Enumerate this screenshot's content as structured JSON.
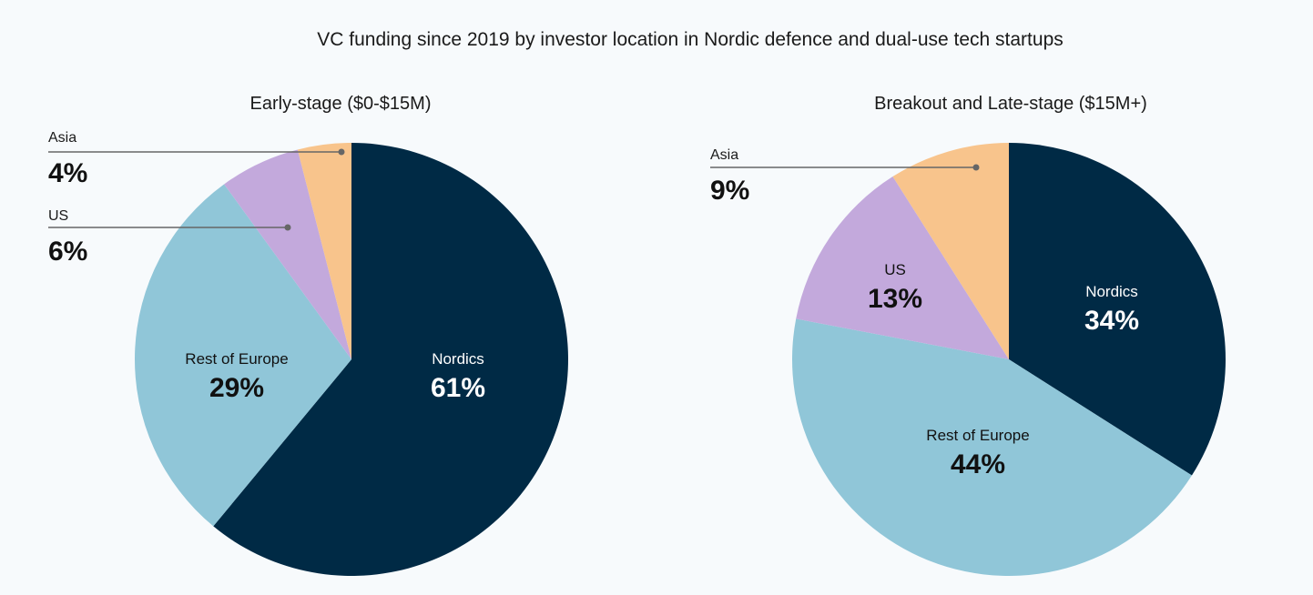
{
  "chart_data": {
    "title": "VC funding since 2019 by investor location in Nordic defence and dual-use tech startups",
    "charts": [
      {
        "type": "pie",
        "subtitle": "Early-stage ($0-$15M)",
        "slices": [
          {
            "label": "Nordics",
            "value": 61,
            "display": "61%",
            "color": "#002a45",
            "text_color": "#ffffff",
            "label_mode": "inside"
          },
          {
            "label": "Rest of Europe",
            "value": 29,
            "display": "29%",
            "color": "#90c6d8",
            "text_color": "#111111",
            "label_mode": "inside"
          },
          {
            "label": "US",
            "value": 6,
            "display": "6%",
            "color": "#c3a9dc",
            "text_color": "#111111",
            "label_mode": "outside"
          },
          {
            "label": "Asia",
            "value": 4,
            "display": "4%",
            "color": "#f8c48c",
            "text_color": "#111111",
            "label_mode": "outside"
          }
        ]
      },
      {
        "type": "pie",
        "subtitle": "Breakout and Late-stage ($15M+)",
        "slices": [
          {
            "label": "Nordics",
            "value": 34,
            "display": "34%",
            "color": "#002a45",
            "text_color": "#ffffff",
            "label_mode": "inside"
          },
          {
            "label": "Rest of Europe",
            "value": 44,
            "display": "44%",
            "color": "#90c6d8",
            "text_color": "#111111",
            "label_mode": "inside"
          },
          {
            "label": "US",
            "value": 13,
            "display": "13%",
            "color": "#c3a9dc",
            "text_color": "#111111",
            "label_mode": "inside"
          },
          {
            "label": "Asia",
            "value": 9,
            "display": "9%",
            "color": "#f8c48c",
            "text_color": "#111111",
            "label_mode": "outside"
          }
        ]
      }
    ]
  }
}
